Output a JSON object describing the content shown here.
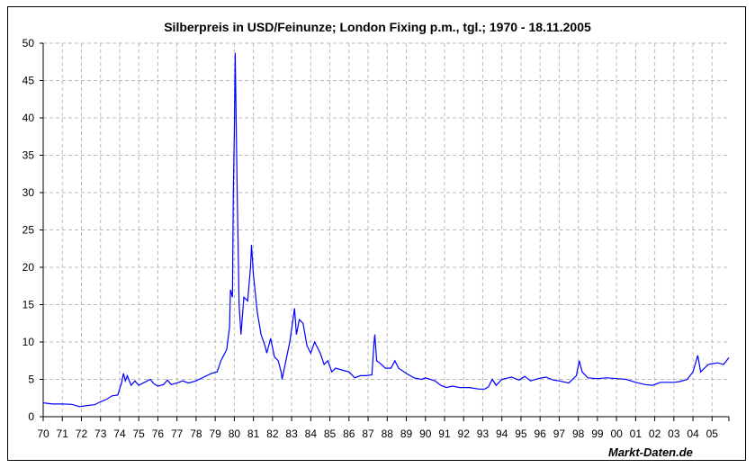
{
  "chart_data": {
    "type": "line",
    "title": "Silberpreis in USD/Feinunze; London Fixing p.m., tgl.; 1970 - 18.11.2005",
    "credit": "Markt-Daten.de",
    "xlabel": "",
    "ylabel": "",
    "xlim": [
      1970,
      2005.88
    ],
    "ylim": [
      0,
      50
    ],
    "grid": true,
    "line_color": "#0000FF",
    "yticks": [
      0,
      5,
      10,
      15,
      20,
      25,
      30,
      35,
      40,
      45,
      50
    ],
    "xtick_labels": [
      "70",
      "71",
      "72",
      "73",
      "74",
      "75",
      "76",
      "77",
      "78",
      "79",
      "80",
      "81",
      "82",
      "83",
      "84",
      "85",
      "86",
      "87",
      "88",
      "89",
      "90",
      "91",
      "92",
      "93",
      "94",
      "95",
      "96",
      "97",
      "98",
      "99",
      "00",
      "01",
      "02",
      "03",
      "04",
      "05"
    ],
    "series": [
      {
        "x": [
          1970.0,
          1970.5,
          1971.0,
          1971.5,
          1971.9,
          1972.3,
          1972.7,
          1973.0,
          1973.3,
          1973.6,
          1973.9,
          1974.1,
          1974.2,
          1974.3,
          1974.4,
          1974.6,
          1974.8,
          1975.0,
          1975.3,
          1975.6,
          1975.8,
          1976.0,
          1976.3,
          1976.5,
          1976.7,
          1977.0,
          1977.3,
          1977.6,
          1978.0,
          1978.4,
          1978.8,
          1979.1,
          1979.3,
          1979.6,
          1979.75,
          1979.8,
          1979.9,
          1979.95,
          1980.0,
          1980.05,
          1980.1,
          1980.15,
          1980.25,
          1980.35,
          1980.5,
          1980.7,
          1980.85,
          1980.9,
          1981.0,
          1981.2,
          1981.4,
          1981.6,
          1981.7,
          1981.9,
          1982.1,
          1982.3,
          1982.45,
          1982.5,
          1982.7,
          1982.9,
          1983.1,
          1983.15,
          1983.25,
          1983.4,
          1983.6,
          1983.8,
          1984.0,
          1984.2,
          1984.5,
          1984.7,
          1984.9,
          1985.1,
          1985.3,
          1985.7,
          1986.0,
          1986.3,
          1986.6,
          1986.9,
          1987.2,
          1987.3,
          1987.35,
          1987.45,
          1987.7,
          1987.9,
          1988.2,
          1988.4,
          1988.6,
          1989.0,
          1989.4,
          1989.8,
          1990.0,
          1990.5,
          1990.8,
          1991.1,
          1991.4,
          1991.8,
          1992.3,
          1992.8,
          1993.1,
          1993.3,
          1993.5,
          1993.7,
          1994.0,
          1994.5,
          1994.9,
          1995.2,
          1995.5,
          1995.9,
          1996.3,
          1996.7,
          1997.0,
          1997.5,
          1997.9,
          1998.05,
          1998.2,
          1998.5,
          1999.0,
          1999.5,
          2000.0,
          2000.5,
          2001.0,
          2001.5,
          2001.9,
          2002.3,
          2002.7,
          2003.0,
          2003.3,
          2003.7,
          2004.0,
          2004.25,
          2004.4,
          2004.8,
          2005.0,
          2005.3,
          2005.6,
          2005.88
        ],
        "y": [
          1.85,
          1.7,
          1.7,
          1.65,
          1.35,
          1.5,
          1.6,
          2.0,
          2.3,
          2.8,
          2.9,
          4.5,
          5.8,
          4.8,
          5.5,
          4.2,
          4.8,
          4.2,
          4.6,
          5.0,
          4.4,
          4.1,
          4.3,
          4.9,
          4.3,
          4.5,
          4.8,
          4.5,
          4.8,
          5.3,
          5.8,
          6.0,
          7.5,
          9.0,
          12,
          17,
          16,
          30,
          38,
          48.7,
          39,
          30,
          15,
          11,
          16,
          15.5,
          20,
          23,
          19,
          14,
          11,
          9.5,
          8.5,
          10.5,
          8.0,
          7.5,
          6,
          5,
          7.5,
          10,
          13.5,
          14.5,
          11,
          13,
          12.5,
          9.5,
          8.5,
          10,
          8.5,
          7.0,
          7.5,
          6.0,
          6.5,
          6.2,
          6.0,
          5.2,
          5.5,
          5.5,
          5.6,
          9.5,
          11,
          7.5,
          7.0,
          6.5,
          6.5,
          7.5,
          6.5,
          5.8,
          5.2,
          5.0,
          5.2,
          4.8,
          4.2,
          3.9,
          4.1,
          3.9,
          3.9,
          3.7,
          3.7,
          4.0,
          5.0,
          4.2,
          5.0,
          5.3,
          4.9,
          5.4,
          4.8,
          5.1,
          5.3,
          4.9,
          4.8,
          4.5,
          5.5,
          7.5,
          6.0,
          5.2,
          5.1,
          5.2,
          5.1,
          5.0,
          4.6,
          4.3,
          4.2,
          4.6,
          4.6,
          4.6,
          4.7,
          5.0,
          6.0,
          8.2,
          6.0,
          7.0,
          7.1,
          7.2,
          7.0,
          7.9
        ]
      }
    ]
  }
}
